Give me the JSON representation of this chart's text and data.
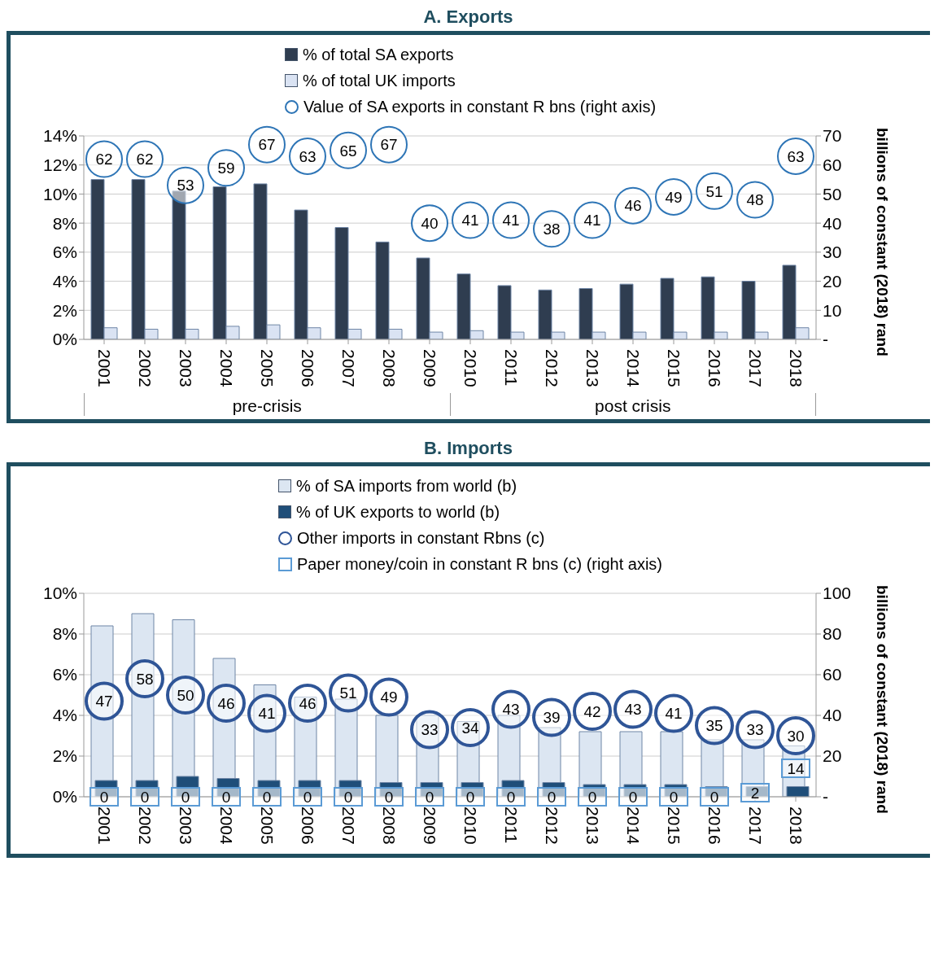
{
  "chart_data": [
    {
      "type": "bar",
      "title": "A.   Exports",
      "y2label": "billions of constant (2018) rand",
      "legend": "top",
      "grid": "y",
      "categories": [
        "2001",
        "2002",
        "2003",
        "2004",
        "2005",
        "2006",
        "2007",
        "2008",
        "2009",
        "2010",
        "2011",
        "2012",
        "2013",
        "2014",
        "2015",
        "2016",
        "2017",
        "2018"
      ],
      "series": [
        {
          "name": "% of total SA exports",
          "type": "bar",
          "color": "#2f3d50",
          "values": [
            11.0,
            11.0,
            10.2,
            10.5,
            10.7,
            8.9,
            7.7,
            6.7,
            5.6,
            4.5,
            3.7,
            3.4,
            3.5,
            3.8,
            4.2,
            4.3,
            4.0,
            5.1
          ]
        },
        {
          "name": "% of total UK imports",
          "type": "bar",
          "color": "#dae3f3",
          "values": [
            0.8,
            0.7,
            0.7,
            0.9,
            1.0,
            0.8,
            0.7,
            0.7,
            0.5,
            0.6,
            0.5,
            0.5,
            0.5,
            0.5,
            0.5,
            0.5,
            0.5,
            0.8
          ]
        },
        {
          "name": "Value of SA exports in constant R bns (right axis)",
          "type": "scatter",
          "axis": "y2",
          "marker": "circle",
          "color": "#2e75b6",
          "values": [
            62,
            62,
            53,
            59,
            67,
            63,
            65,
            67,
            40,
            41,
            41,
            38,
            41,
            46,
            49,
            51,
            48,
            63
          ],
          "value_labels": [
            "62",
            "62",
            "53",
            "59",
            "67",
            "63",
            "65",
            "67",
            "40",
            "41",
            "41",
            "38",
            "41",
            "46",
            "49",
            "51",
            "48",
            "63"
          ]
        }
      ],
      "ylim": [
        0,
        14
      ],
      "yticks": [
        {
          "value": 0,
          "label": "0%"
        },
        {
          "value": 2,
          "label": "2%"
        },
        {
          "value": 4,
          "label": "4%"
        },
        {
          "value": 6,
          "label": "6%"
        },
        {
          "value": 8,
          "label": "8%"
        },
        {
          "value": 10,
          "label": "10%"
        },
        {
          "value": 12,
          "label": "12%"
        },
        {
          "value": 14,
          "label": "14%"
        }
      ],
      "y2lim": [
        0,
        70
      ],
      "y2ticks": [
        {
          "value": 0,
          "label": "-"
        },
        10,
        20,
        30,
        40,
        50,
        60,
        70
      ],
      "annotations": [
        "pre-crisis",
        "post crisis"
      ]
    },
    {
      "type": "bar",
      "title": "B.   Imports",
      "y2label": "billions of constant (2018) rand",
      "legend": "top",
      "grid": "y",
      "categories": [
        "2001",
        "2002",
        "2003",
        "2004",
        "2005",
        "2006",
        "2007",
        "2008",
        "2009",
        "2010",
        "2011",
        "2012",
        "2013",
        "2014",
        "2015",
        "2016",
        "2017",
        "2018"
      ],
      "series": [
        {
          "name": "% of SA imports from world (b)",
          "type": "bar",
          "color": "#dce6f2",
          "values": [
            8.4,
            9.0,
            8.7,
            6.8,
            5.5,
            4.9,
            4.8,
            4.0,
            4.0,
            3.7,
            4.0,
            3.4,
            3.2,
            3.2,
            3.2,
            2.8,
            2.8,
            2.5
          ]
        },
        {
          "name": "% of UK exports to world (b)",
          "type": "bar",
          "color": "#1f4e79",
          "values": [
            0.8,
            0.8,
            1.0,
            0.9,
            0.8,
            0.8,
            0.8,
            0.7,
            0.7,
            0.7,
            0.8,
            0.7,
            0.6,
            0.6,
            0.6,
            0.5,
            0.5,
            0.5
          ]
        },
        {
          "name": "Other imports in constant  Rbns (c)",
          "type": "scatter",
          "axis": "y2",
          "marker": "circle",
          "color": "#2f5597",
          "values": [
            47,
            58,
            50,
            46,
            41,
            46,
            51,
            49,
            33,
            34,
            43,
            39,
            42,
            43,
            41,
            35,
            33,
            30
          ],
          "value_labels": [
            "47",
            "58",
            "50",
            "46",
            "41",
            "46",
            "51",
            "49",
            "33",
            "34",
            "43",
            "39",
            "42",
            "43",
            "41",
            "35",
            "33",
            "30"
          ]
        },
        {
          "name": "Paper money/coin in constant R bns (c) (right axis)",
          "type": "scatter",
          "axis": "y2",
          "marker": "square",
          "color": "#5b9bd5",
          "values": [
            0,
            0,
            0,
            0,
            0,
            0,
            0,
            0,
            0,
            0,
            0,
            0,
            0,
            0,
            0,
            0,
            2,
            14
          ],
          "value_labels": [
            "0",
            "0",
            "0",
            "0",
            "0",
            "0",
            "0",
            "0",
            "0",
            "0",
            "0",
            "0",
            "0",
            "0",
            "0",
            "0",
            "2",
            "14"
          ]
        }
      ],
      "ylim": [
        0,
        10
      ],
      "yticks": [
        {
          "value": 0,
          "label": "0%"
        },
        {
          "value": 2,
          "label": "2%"
        },
        {
          "value": 4,
          "label": "4%"
        },
        {
          "value": 6,
          "label": "6%"
        },
        {
          "value": 8,
          "label": "8%"
        },
        {
          "value": 10,
          "label": "10%"
        }
      ],
      "y2lim": [
        0,
        100
      ],
      "y2ticks": [
        {
          "value": 0,
          "label": "-"
        },
        20,
        40,
        60,
        80,
        100
      ]
    }
  ]
}
